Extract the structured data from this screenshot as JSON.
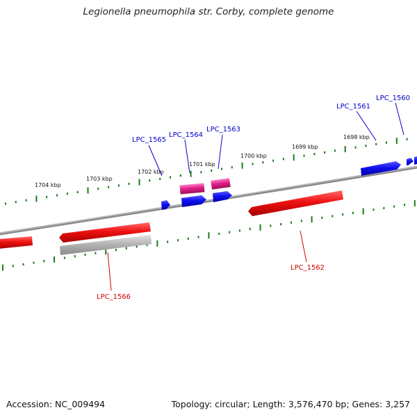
{
  "title": "Legionella pneumophila str. Corby, complete genome",
  "footer": {
    "accession": "Accession: NC_009494",
    "summary": "Topology: circular; Length: 3,576,470 bp; Genes: 3,257"
  },
  "ticks": [
    "1698 kbp",
    "1699 kbp",
    "1700 kbp",
    "1701 kbp",
    "1702 kbp",
    "1703 kbp",
    "1704 kbp"
  ],
  "genes": [
    {
      "name": "LPC_1560",
      "color": "#0000cc"
    },
    {
      "name": "LPC_1561",
      "color": "#0000cc"
    },
    {
      "name": "LPC_1562",
      "color": "#cc0000"
    },
    {
      "name": "LPC_1563",
      "color": "#0000cc"
    },
    {
      "name": "LPC_1564",
      "color": "#0000cc"
    },
    {
      "name": "LPC_1565",
      "color": "#0000cc"
    },
    {
      "name": "LPC_1566",
      "color": "#cc0000"
    }
  ],
  "colors": {
    "backbone": "#808080",
    "tick_marks": "#1a7a1a",
    "forward_gene": "#1010ee",
    "reverse_gene": "#ee1111",
    "rna_gene": "#e0208a",
    "pseudo_gene": "#b4b4b4"
  }
}
